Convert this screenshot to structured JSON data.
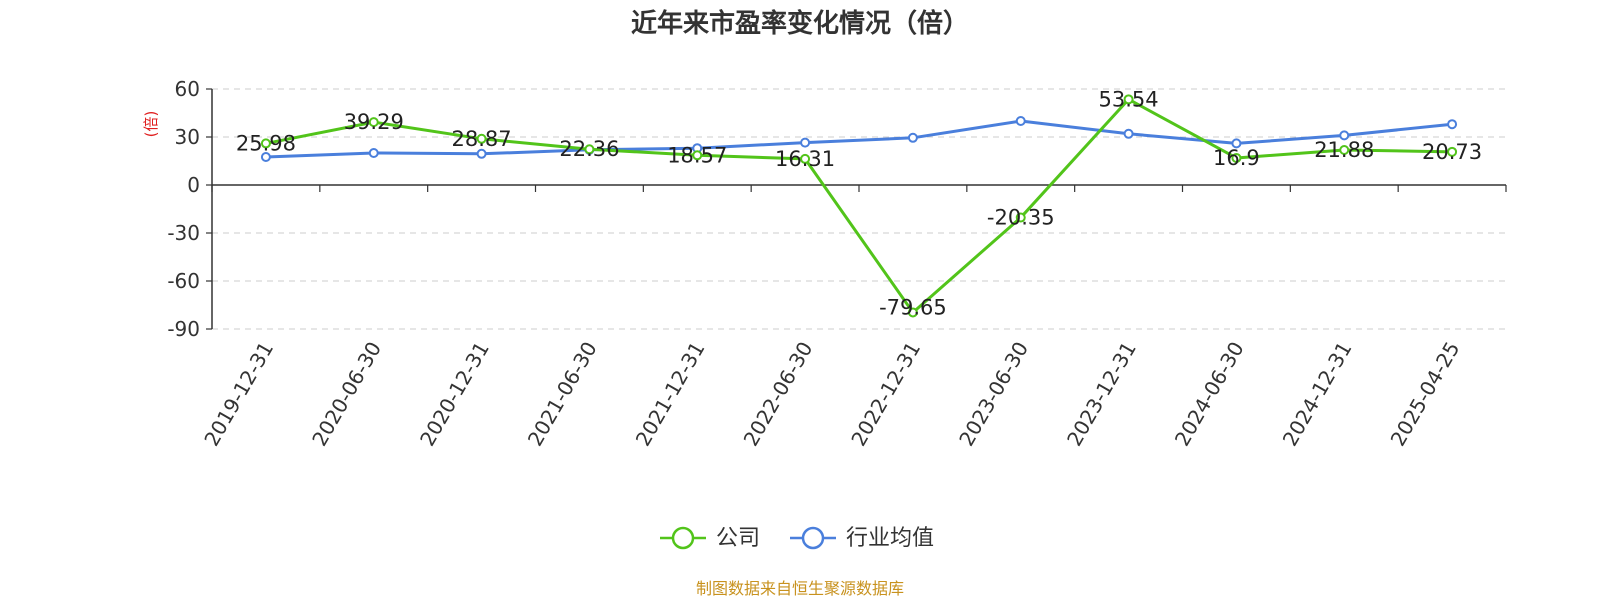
{
  "chart_data": {
    "type": "line",
    "title": "近年来市盈率变化情况（倍）",
    "ylabel": "(倍)",
    "ylim": [
      -90,
      60
    ],
    "yticks": [
      60,
      30,
      0,
      -30,
      -60,
      -90
    ],
    "grid": true,
    "legend_position": "bottom-center",
    "categories": [
      "2019-12-31",
      "2020-06-30",
      "2020-12-31",
      "2021-06-30",
      "2021-12-31",
      "2022-06-30",
      "2022-12-31",
      "2023-06-30",
      "2023-12-31",
      "2024-06-30",
      "2024-12-31",
      "2025-04-25"
    ],
    "series": [
      {
        "name": "公司",
        "color": "#52c41a",
        "values": [
          25.98,
          39.29,
          28.87,
          22.36,
          18.57,
          16.31,
          -79.65,
          -20.35,
          53.54,
          16.9,
          21.88,
          20.73
        ],
        "labels": [
          "25.98",
          "39.29",
          "28.87",
          "22.36",
          "18.57",
          "16.31",
          "-79.65",
          "-20.35",
          "53.54",
          "16.9",
          "21.88",
          "20.73"
        ]
      },
      {
        "name": "行业均值",
        "color": "#4a7fdc",
        "values": [
          17.5,
          20,
          19.5,
          22,
          23,
          26.5,
          29.5,
          40,
          32,
          26,
          31,
          38
        ]
      }
    ]
  },
  "source": "制图数据来自恒生聚源数据库",
  "colors": {
    "ylabel": "#e02020",
    "source": "#c8921e",
    "axis": "#333333",
    "grid": "#cccccc"
  }
}
